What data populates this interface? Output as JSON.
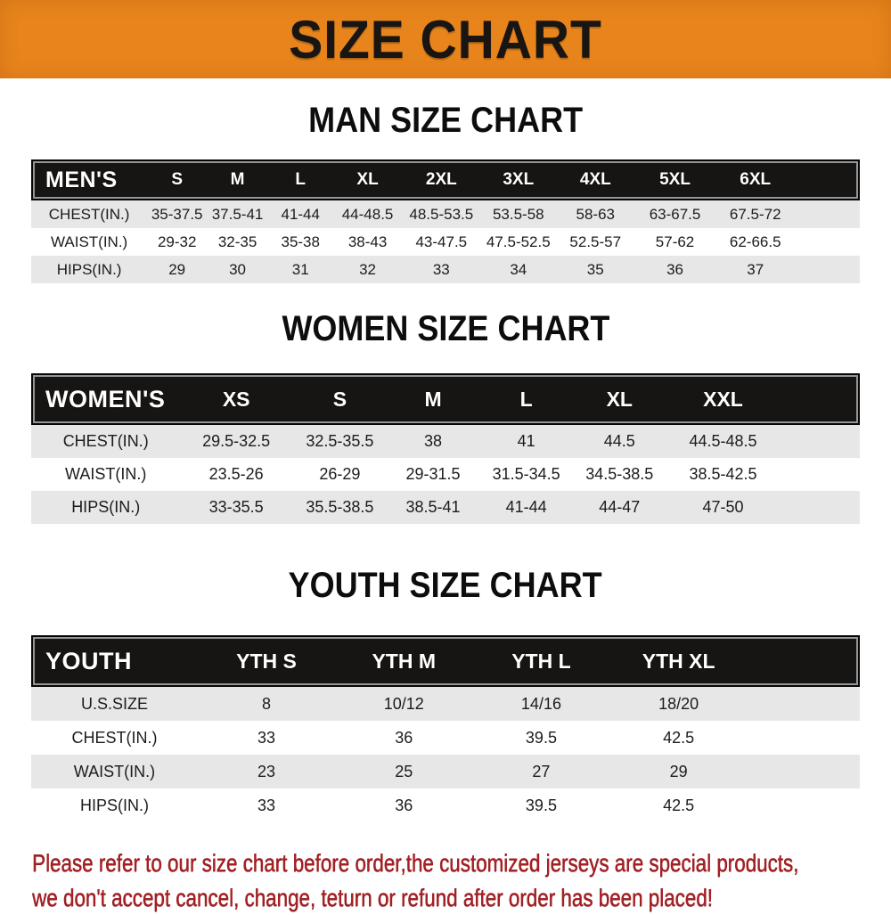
{
  "banner": {
    "title": "SIZE CHART"
  },
  "sections": {
    "men": {
      "title": "MAN SIZE CHART",
      "group_label": "MEN'S",
      "columns": [
        "S",
        "M",
        "L",
        "XL",
        "2XL",
        "3XL",
        "4XL",
        "5XL",
        "6XL"
      ],
      "rows": [
        {
          "label": "CHEST(IN.)",
          "cells": [
            "35-37.5",
            "37.5-41",
            "41-44",
            "44-48.5",
            "48.5-53.5",
            "53.5-58",
            "58-63",
            "63-67.5",
            "67.5-72"
          ]
        },
        {
          "label": "WAIST(IN.)",
          "cells": [
            "29-32",
            "32-35",
            "35-38",
            "38-43",
            "43-47.5",
            "47.5-52.5",
            "52.5-57",
            "57-62",
            "62-66.5"
          ]
        },
        {
          "label": "HIPS(IN.)",
          "cells": [
            "29",
            "30",
            "31",
            "32",
            "33",
            "34",
            "35",
            "36",
            "37"
          ]
        }
      ]
    },
    "women": {
      "title": "WOMEN SIZE CHART",
      "group_label": "WOMEN'S",
      "columns": [
        "XS",
        "S",
        "M",
        "L",
        "XL",
        "XXL"
      ],
      "rows": [
        {
          "label": "CHEST(IN.)",
          "cells": [
            "29.5-32.5",
            "32.5-35.5",
            "38",
            "41",
            "44.5",
            "44.5-48.5"
          ]
        },
        {
          "label": "WAIST(IN.)",
          "cells": [
            "23.5-26",
            "26-29",
            "29-31.5",
            "31.5-34.5",
            "34.5-38.5",
            "38.5-42.5"
          ]
        },
        {
          "label": "HIPS(IN.)",
          "cells": [
            "33-35.5",
            "35.5-38.5",
            "38.5-41",
            "41-44",
            "44-47",
            "47-50"
          ]
        }
      ]
    },
    "youth": {
      "title": "YOUTH SIZE CHART",
      "group_label": "YOUTH",
      "columns": [
        "YTH S",
        "YTH M",
        "YTH L",
        "YTH XL"
      ],
      "rows": [
        {
          "label": "U.S.SIZE",
          "cells": [
            "8",
            "10/12",
            "14/16",
            "18/20"
          ]
        },
        {
          "label": "CHEST(IN.)",
          "cells": [
            "33",
            "36",
            "39.5",
            "42.5"
          ]
        },
        {
          "label": "WAIST(IN.)",
          "cells": [
            "23",
            "25",
            "27",
            "29"
          ]
        },
        {
          "label": "HIPS(IN.)",
          "cells": [
            "33",
            "36",
            "39.5",
            "42.5"
          ]
        }
      ]
    }
  },
  "footer": {
    "line1": "Please refer to our size chart before order,the customized jerseys are special products,",
    "line2": "we don't accept cancel, change, teturn or refund after order has been placed!"
  },
  "colors": {
    "banner_orange": "#E8841C",
    "header_black": "#171513",
    "row_gray": "#E7E7E7",
    "footer_red": "#A32125",
    "title_black": "#0D0D0D"
  }
}
